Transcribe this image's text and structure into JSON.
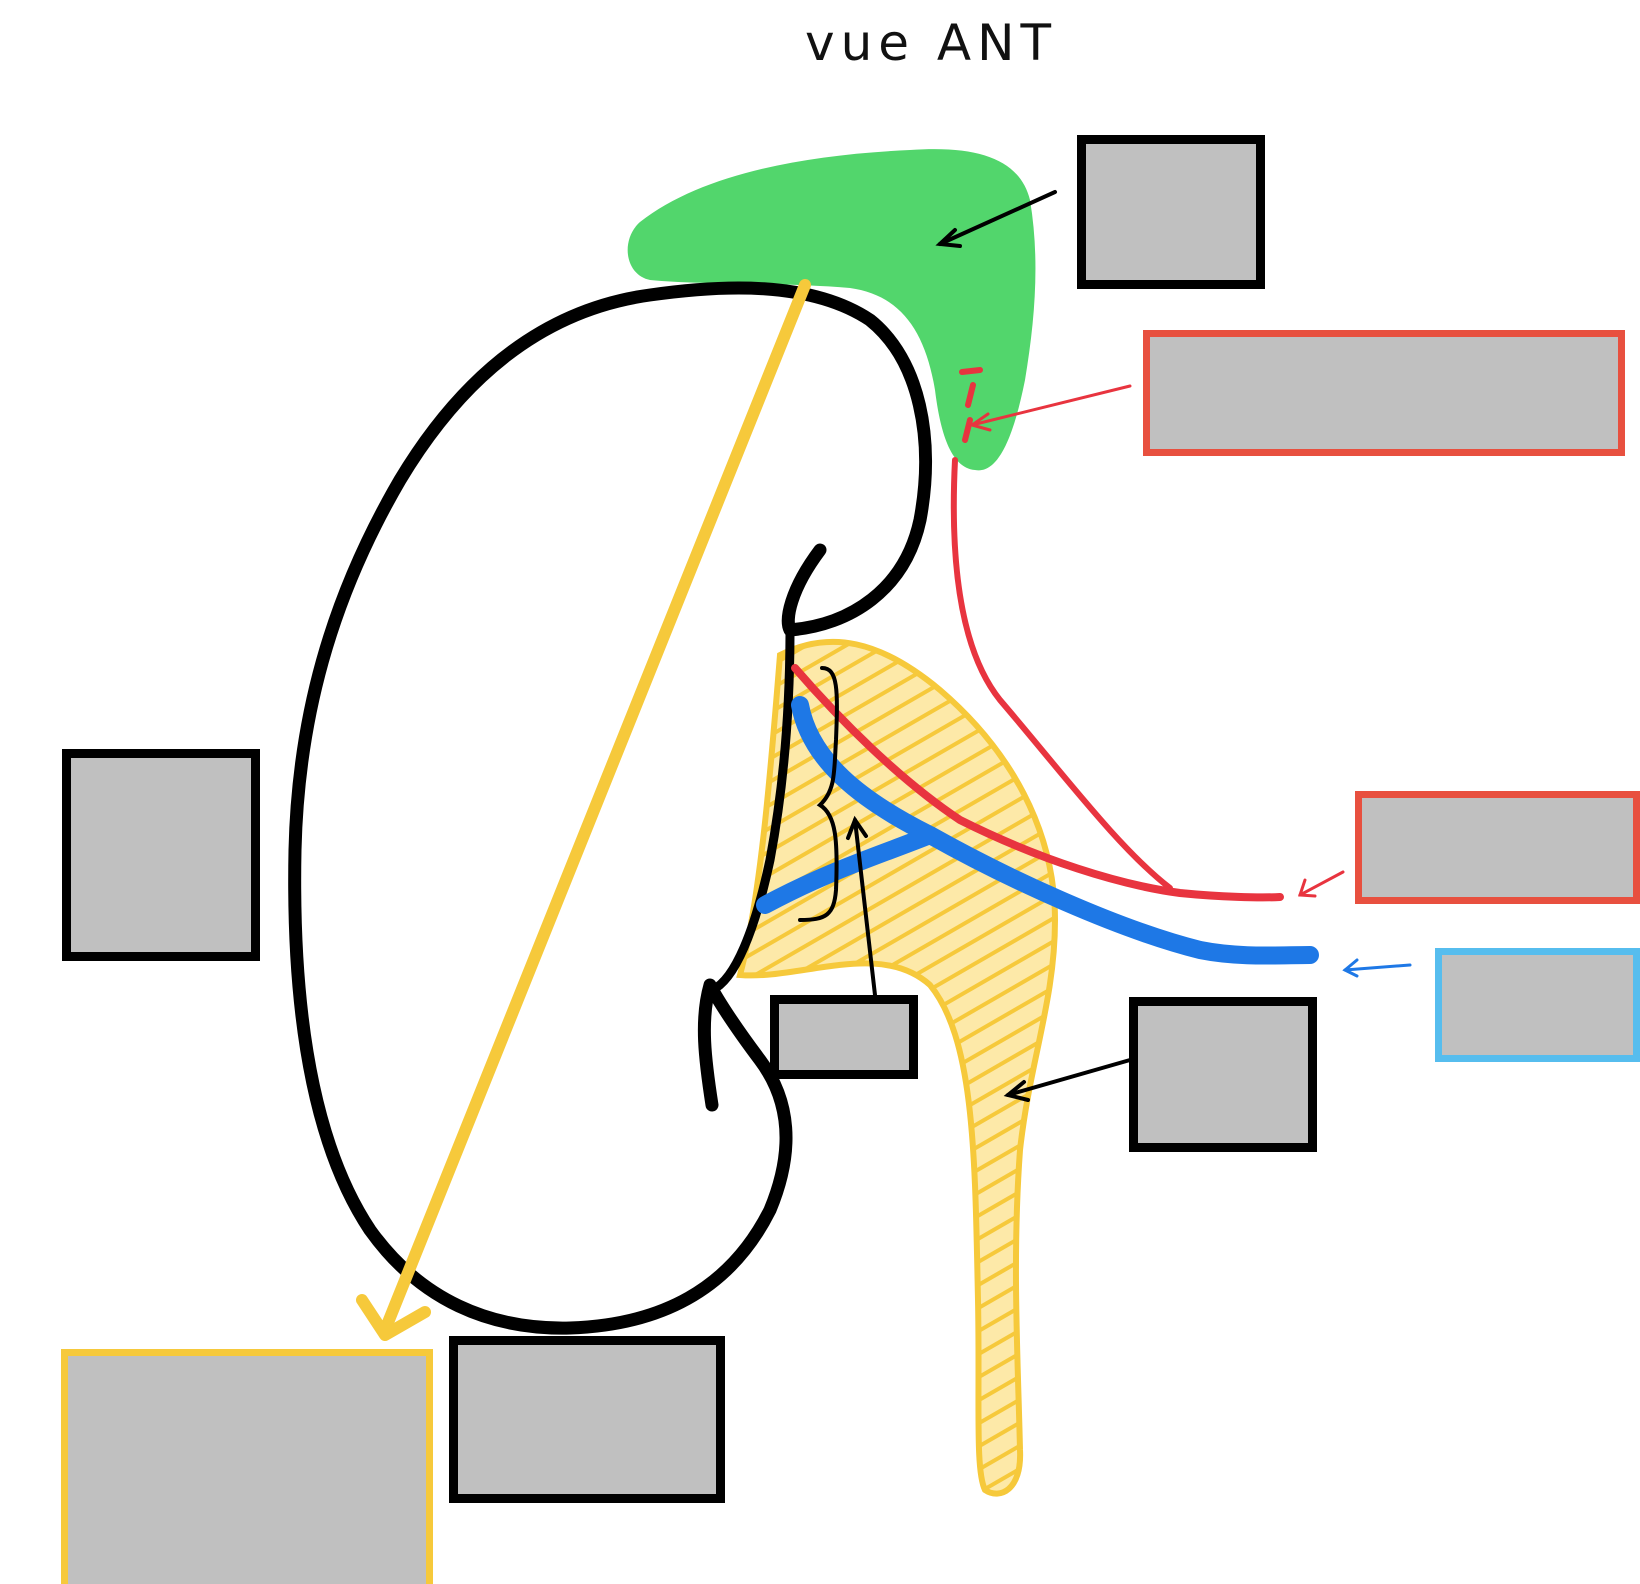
{
  "title": "vue ANT",
  "colors": {
    "gland_fill": "#52d66c",
    "kidney_outline": "#000000",
    "ureter_pelvis": "#f6c93b",
    "axis_line": "#f6c93b",
    "artery": "#e8343f",
    "vein": "#1e78e6",
    "label_fill": "#c0c0c0",
    "label_border_red": "#e8503f",
    "label_border_blue": "#56bdee",
    "label_border_yellow": "#f6c93b",
    "label_border_black": "#000000"
  },
  "labels": {
    "gland": "",
    "artery_upper": "",
    "left_side": "",
    "artery_lower": "",
    "vein": "",
    "hilum": "",
    "ureter": "",
    "axis": "",
    "lower_pole": ""
  }
}
